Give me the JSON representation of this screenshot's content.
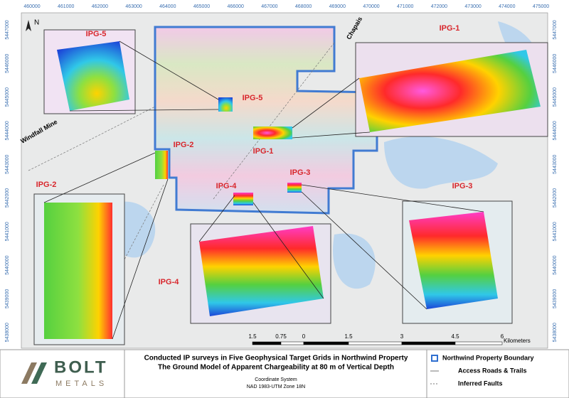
{
  "map": {
    "coordinates": {
      "eastings": [
        460000,
        461000,
        462000,
        463000,
        464000,
        465000,
        466000,
        467000,
        468000,
        469000,
        470000,
        471000,
        472000,
        473000,
        474000,
        475000
      ],
      "northings": [
        5447000,
        5446000,
        5445000,
        5444000,
        5443000,
        5442000,
        5441000,
        5440000,
        5439000,
        5438000
      ]
    },
    "north": "N",
    "places": {
      "chapais": "Chapais",
      "windfall": "Windfall Mine"
    },
    "grids": [
      {
        "label": "IPG-1"
      },
      {
        "label": "IPG-2"
      },
      {
        "label": "IPG-3"
      },
      {
        "label": "IPG-4"
      },
      {
        "label": "IPG-5"
      }
    ],
    "scale_bar": {
      "ticks": [
        "1.5",
        "0.75",
        "0",
        "1.5",
        "3",
        "4.5",
        "6"
      ],
      "unit": "Kilometers"
    }
  },
  "footer": {
    "logo": {
      "name": "BOLT",
      "sub": "METALS"
    },
    "title": [
      "Conducted IP surveys in Five Geophysical Target Grids in Northwind Property",
      "The Ground Model of Apparent Chargeability at 80 m of Vertical Depth"
    ],
    "coordinate_system": {
      "heading": "Coordinate System",
      "value": "NAD 1983-UTM Zone 18N"
    },
    "legend": [
      "Northwind Property Boundary",
      "Access Roads & Trails",
      "Inferred Faults"
    ]
  }
}
